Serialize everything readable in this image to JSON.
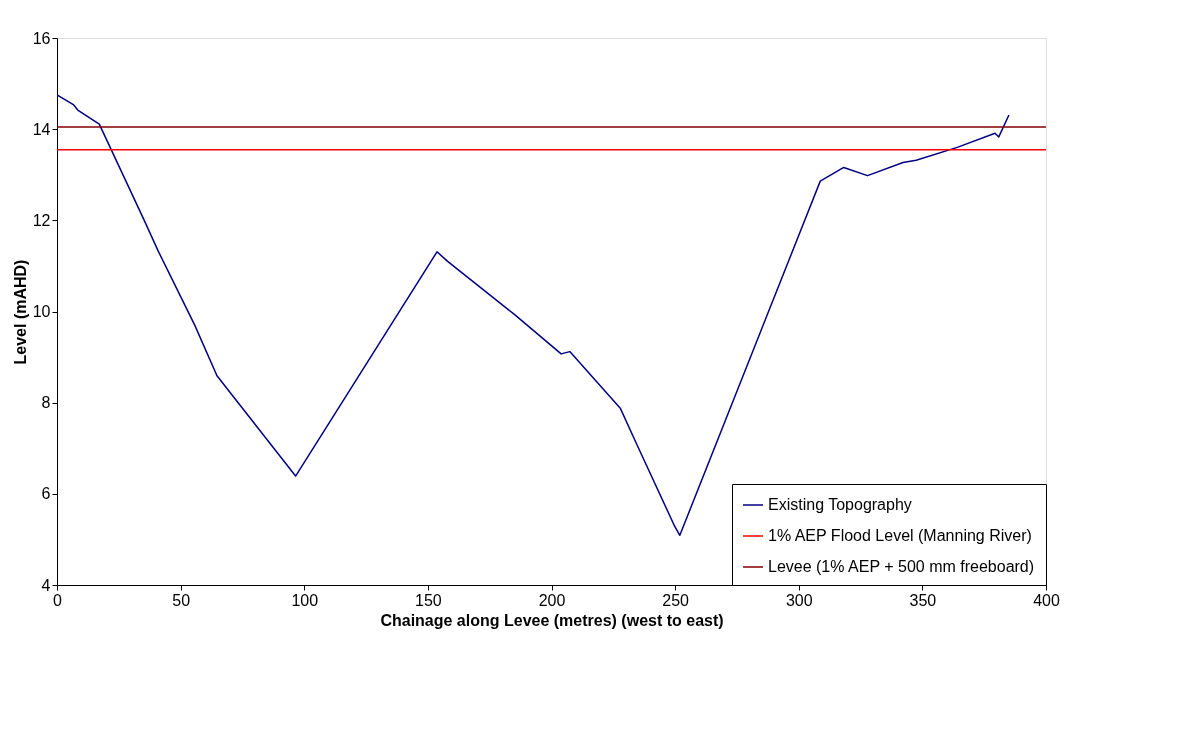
{
  "chart_data": {
    "type": "line",
    "xlabel": "Chainage along Levee (metres) (west to east)",
    "ylabel": "Level (mAHD)",
    "xlim": [
      0,
      400
    ],
    "xticks": [
      0,
      50,
      100,
      150,
      200,
      250,
      300,
      350,
      400
    ],
    "ylim": [
      4,
      16
    ],
    "yticks": [
      4,
      6,
      8,
      10,
      12,
      14,
      16
    ],
    "grid": false,
    "legend": "bottom right",
    "series": [
      {
        "name": "Existing Topography",
        "color": "#000080",
        "x": [
          0,
          6.6,
          8.4,
          16,
          17.1,
          35.1,
          40.9,
          55.7,
          64.7,
          96.5,
          153.7,
          158.0,
          185.1,
          203.9,
          207.4,
          227.9,
          234.8,
          249.8,
          251.9,
          308.7,
          318.2,
          327.8,
          342.2,
          347.5,
          364.1,
          379.4,
          380.9,
          385.0
        ],
        "values": [
          14.75,
          14.54,
          14.42,
          14.15,
          14.11,
          12.02,
          11.33,
          9.7,
          8.59,
          6.39,
          11.31,
          11.1,
          9.93,
          9.07,
          9.12,
          7.87,
          7.05,
          5.29,
          5.09,
          12.86,
          13.16,
          12.98,
          13.27,
          13.32,
          13.6,
          13.91,
          13.83,
          14.31
        ]
      },
      {
        "name": "1% AEP Flood Level (Manning River)",
        "color": "#ff0000",
        "x": [
          0,
          400
        ],
        "values": [
          13.55,
          13.55
        ]
      },
      {
        "name": "Levee (1% AEP + 500 mm freeboard)",
        "color": "#800000",
        "x": [
          0,
          400
        ],
        "values": [
          14.05,
          14.05
        ]
      }
    ]
  }
}
